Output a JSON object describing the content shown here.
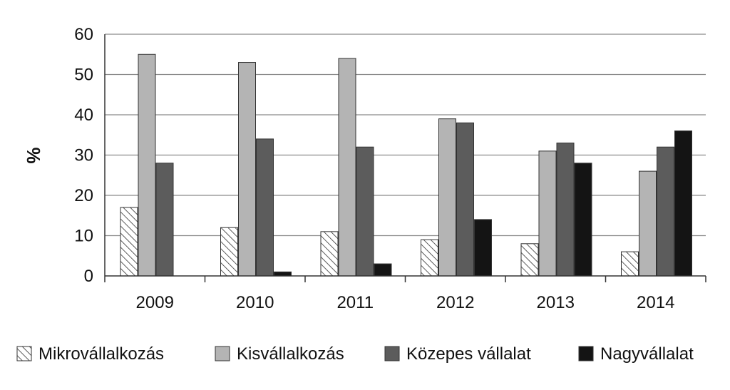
{
  "chart_data": {
    "type": "bar",
    "title": "",
    "xlabel": "",
    "ylabel": "%",
    "ylim": [
      0,
      60
    ],
    "yticks": [
      0,
      10,
      20,
      30,
      40,
      50,
      60
    ],
    "grid": true,
    "legend_position": "bottom",
    "categories": [
      "2009",
      "2010",
      "2011",
      "2012",
      "2013",
      "2014"
    ],
    "series": [
      {
        "name": "Mikrovállalkozás",
        "values": [
          17,
          12,
          11,
          9,
          8,
          6
        ],
        "color": "#ffffff",
        "pattern": "hatch"
      },
      {
        "name": "Kisvállalkozás",
        "values": [
          55,
          53,
          54,
          39,
          31,
          26
        ],
        "color": "#b4b4b4"
      },
      {
        "name": "Közepes vállalat",
        "values": [
          28,
          34,
          32,
          38,
          33,
          32
        ],
        "color": "#5c5c5c"
      },
      {
        "name": "Nagyvállalat",
        "values": [
          0,
          1,
          3,
          14,
          28,
          36
        ],
        "color": "#141414"
      }
    ]
  }
}
